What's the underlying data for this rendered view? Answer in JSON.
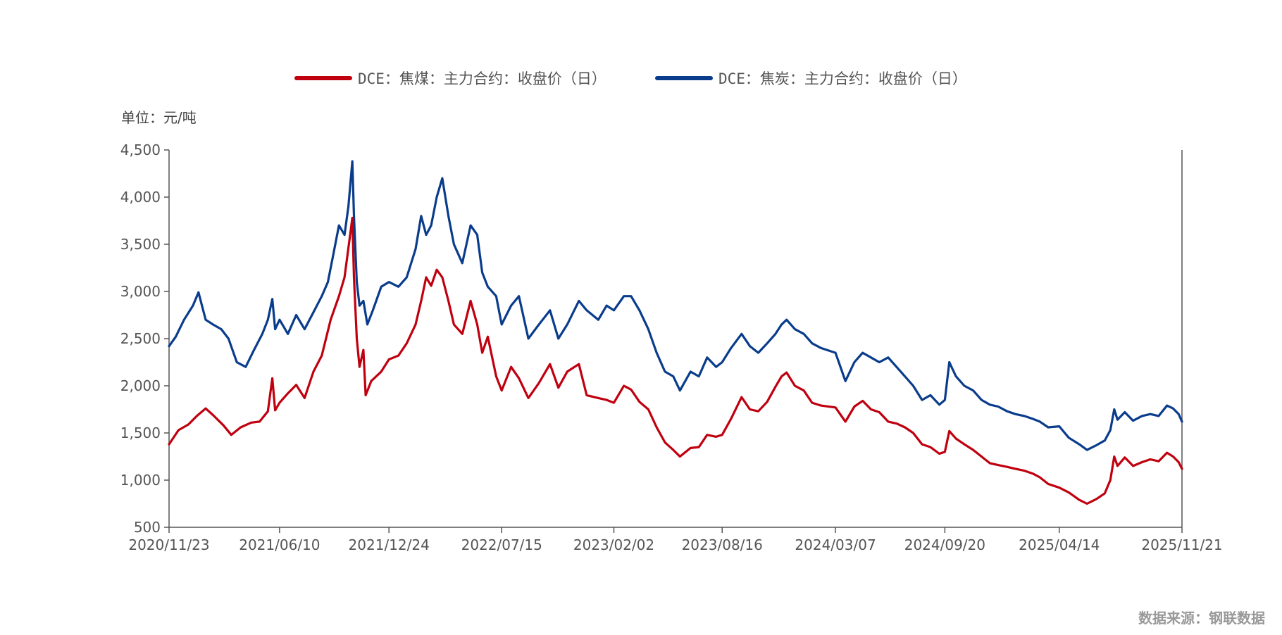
{
  "legend": {
    "coking_coal": "DCE：焦煤：主力合约：收盘价（日）",
    "coke": "DCE：焦炭：主力合约：收盘价（日）"
  },
  "unit_label": "单位：元/吨",
  "source": "数据来源：钢联数据",
  "colors": {
    "coking_coal": "#c0000f",
    "coke": "#0a3c8c",
    "axis": "#555555"
  },
  "chart_data": {
    "type": "line",
    "title": "",
    "xlabel": "",
    "ylabel": "单位：元/吨",
    "x_range": [
      "2020-11-23",
      "2025-11-21"
    ],
    "ylim": [
      500,
      4500
    ],
    "y_ticks": [
      500,
      1000,
      1500,
      2000,
      2500,
      3000,
      3500,
      4000,
      4500
    ],
    "y_tick_labels": [
      "500",
      "1,000",
      "1,500",
      "2,000",
      "2,500",
      "3,000",
      "3,500",
      "4,000",
      "4,500"
    ],
    "x_ticks": [
      "2020-11-23",
      "2021-06-10",
      "2021-12-24",
      "2022-07-15",
      "2023-02-02",
      "2023-08-16",
      "2024-03-07",
      "2024-09-20",
      "2025-04-14",
      "2025-11-21"
    ],
    "x_tick_labels": [
      "2020/11/23",
      "2021/06/10",
      "2021/12/24",
      "2022/07/15",
      "2023/02/02",
      "2023/08/16",
      "2024/03/07",
      "2024/09/20",
      "2025/04/14",
      "2025/11/21"
    ],
    "grid": false,
    "legend_position": "top-center",
    "series": [
      {
        "name": "DCE：焦煤：主力合约：收盘价（日）",
        "color": "#c0000f",
        "points": [
          [
            "2020-11-23",
            1380
          ],
          [
            "2020-12-10",
            1530
          ],
          [
            "2020-12-28",
            1590
          ],
          [
            "2021-01-12",
            1680
          ],
          [
            "2021-01-28",
            1760
          ],
          [
            "2021-02-10",
            1690
          ],
          [
            "2021-03-01",
            1580
          ],
          [
            "2021-03-15",
            1480
          ],
          [
            "2021-04-01",
            1560
          ],
          [
            "2021-04-20",
            1610
          ],
          [
            "2021-05-05",
            1620
          ],
          [
            "2021-05-20",
            1730
          ],
          [
            "2021-05-28",
            2080
          ],
          [
            "2021-06-02",
            1740
          ],
          [
            "2021-06-10",
            1820
          ],
          [
            "2021-06-25",
            1920
          ],
          [
            "2021-07-10",
            2010
          ],
          [
            "2021-07-25",
            1870
          ],
          [
            "2021-08-10",
            2150
          ],
          [
            "2021-08-25",
            2320
          ],
          [
            "2021-09-10",
            2700
          ],
          [
            "2021-09-25",
            2950
          ],
          [
            "2021-10-05",
            3150
          ],
          [
            "2021-10-12",
            3460
          ],
          [
            "2021-10-19",
            3780
          ],
          [
            "2021-10-22",
            3150
          ],
          [
            "2021-10-27",
            2500
          ],
          [
            "2021-11-01",
            2200
          ],
          [
            "2021-11-08",
            2380
          ],
          [
            "2021-11-12",
            1900
          ],
          [
            "2021-11-22",
            2050
          ],
          [
            "2021-12-10",
            2150
          ],
          [
            "2021-12-24",
            2280
          ],
          [
            "2022-01-10",
            2320
          ],
          [
            "2022-01-25",
            2450
          ],
          [
            "2022-02-10",
            2650
          ],
          [
            "2022-02-20",
            2900
          ],
          [
            "2022-03-01",
            3150
          ],
          [
            "2022-03-10",
            3060
          ],
          [
            "2022-03-20",
            3230
          ],
          [
            "2022-03-30",
            3150
          ],
          [
            "2022-04-10",
            2900
          ],
          [
            "2022-04-20",
            2650
          ],
          [
            "2022-05-05",
            2550
          ],
          [
            "2022-05-20",
            2900
          ],
          [
            "2022-06-01",
            2650
          ],
          [
            "2022-06-10",
            2350
          ],
          [
            "2022-06-20",
            2520
          ],
          [
            "2022-07-05",
            2100
          ],
          [
            "2022-07-15",
            1950
          ],
          [
            "2022-08-01",
            2200
          ],
          [
            "2022-08-15",
            2080
          ],
          [
            "2022-09-01",
            1870
          ],
          [
            "2022-09-20",
            2030
          ],
          [
            "2022-10-10",
            2230
          ],
          [
            "2022-10-25",
            1980
          ],
          [
            "2022-11-10",
            2150
          ],
          [
            "2022-12-01",
            2230
          ],
          [
            "2022-12-15",
            1900
          ],
          [
            "2023-01-05",
            1870
          ],
          [
            "2023-01-20",
            1850
          ],
          [
            "2023-02-02",
            1820
          ],
          [
            "2023-02-20",
            2000
          ],
          [
            "2023-03-05",
            1960
          ],
          [
            "2023-03-20",
            1830
          ],
          [
            "2023-04-05",
            1750
          ],
          [
            "2023-04-20",
            1560
          ],
          [
            "2023-05-05",
            1400
          ],
          [
            "2023-05-20",
            1320
          ],
          [
            "2023-06-01",
            1250
          ],
          [
            "2023-06-20",
            1340
          ],
          [
            "2023-07-05",
            1350
          ],
          [
            "2023-07-20",
            1480
          ],
          [
            "2023-08-05",
            1460
          ],
          [
            "2023-08-16",
            1480
          ],
          [
            "2023-09-01",
            1650
          ],
          [
            "2023-09-20",
            1880
          ],
          [
            "2023-10-05",
            1750
          ],
          [
            "2023-10-20",
            1730
          ],
          [
            "2023-11-05",
            1830
          ],
          [
            "2023-11-20",
            1990
          ],
          [
            "2023-12-01",
            2100
          ],
          [
            "2023-12-10",
            2140
          ],
          [
            "2023-12-25",
            2000
          ],
          [
            "2024-01-10",
            1950
          ],
          [
            "2024-01-25",
            1820
          ],
          [
            "2024-02-10",
            1790
          ],
          [
            "2024-03-07",
            1770
          ],
          [
            "2024-03-25",
            1620
          ],
          [
            "2024-04-10",
            1780
          ],
          [
            "2024-04-25",
            1840
          ],
          [
            "2024-05-10",
            1750
          ],
          [
            "2024-05-25",
            1720
          ],
          [
            "2024-06-10",
            1620
          ],
          [
            "2024-06-25",
            1600
          ],
          [
            "2024-07-10",
            1560
          ],
          [
            "2024-07-25",
            1500
          ],
          [
            "2024-08-10",
            1380
          ],
          [
            "2024-08-25",
            1350
          ],
          [
            "2024-09-10",
            1280
          ],
          [
            "2024-09-20",
            1300
          ],
          [
            "2024-09-28",
            1520
          ],
          [
            "2024-10-10",
            1440
          ],
          [
            "2024-10-25",
            1380
          ],
          [
            "2024-11-10",
            1320
          ],
          [
            "2024-11-25",
            1250
          ],
          [
            "2024-12-10",
            1180
          ],
          [
            "2024-12-25",
            1160
          ],
          [
            "2025-01-10",
            1140
          ],
          [
            "2025-01-25",
            1120
          ],
          [
            "2025-02-10",
            1100
          ],
          [
            "2025-02-25",
            1070
          ],
          [
            "2025-03-10",
            1030
          ],
          [
            "2025-03-25",
            960
          ],
          [
            "2025-04-14",
            920
          ],
          [
            "2025-05-01",
            870
          ],
          [
            "2025-05-20",
            790
          ],
          [
            "2025-06-03",
            750
          ],
          [
            "2025-06-20",
            800
          ],
          [
            "2025-07-05",
            860
          ],
          [
            "2025-07-15",
            1000
          ],
          [
            "2025-07-22",
            1250
          ],
          [
            "2025-07-28",
            1150
          ],
          [
            "2025-08-10",
            1240
          ],
          [
            "2025-08-25",
            1150
          ],
          [
            "2025-09-10",
            1190
          ],
          [
            "2025-09-25",
            1220
          ],
          [
            "2025-10-10",
            1200
          ],
          [
            "2025-10-25",
            1290
          ],
          [
            "2025-11-05",
            1250
          ],
          [
            "2025-11-15",
            1190
          ],
          [
            "2025-11-21",
            1120
          ]
        ]
      },
      {
        "name": "DCE：焦炭：主力合约：收盘价（日）",
        "color": "#0a3c8c",
        "points": [
          [
            "2020-11-23",
            2420
          ],
          [
            "2020-12-05",
            2520
          ],
          [
            "2020-12-20",
            2700
          ],
          [
            "2021-01-05",
            2850
          ],
          [
            "2021-01-15",
            2990
          ],
          [
            "2021-01-28",
            2700
          ],
          [
            "2021-02-10",
            2650
          ],
          [
            "2021-02-25",
            2600
          ],
          [
            "2021-03-10",
            2500
          ],
          [
            "2021-03-25",
            2250
          ],
          [
            "2021-04-10",
            2200
          ],
          [
            "2021-04-25",
            2380
          ],
          [
            "2021-05-10",
            2550
          ],
          [
            "2021-05-20",
            2700
          ],
          [
            "2021-05-28",
            2920
          ],
          [
            "2021-06-02",
            2600
          ],
          [
            "2021-06-10",
            2700
          ],
          [
            "2021-06-25",
            2550
          ],
          [
            "2021-07-10",
            2750
          ],
          [
            "2021-07-25",
            2600
          ],
          [
            "2021-08-10",
            2780
          ],
          [
            "2021-08-25",
            2950
          ],
          [
            "2021-09-05",
            3100
          ],
          [
            "2021-09-15",
            3400
          ],
          [
            "2021-09-25",
            3700
          ],
          [
            "2021-10-05",
            3600
          ],
          [
            "2021-10-12",
            3900
          ],
          [
            "2021-10-19",
            4380
          ],
          [
            "2021-10-22",
            3800
          ],
          [
            "2021-10-27",
            3100
          ],
          [
            "2021-11-01",
            2850
          ],
          [
            "2021-11-08",
            2900
          ],
          [
            "2021-11-15",
            2650
          ],
          [
            "2021-11-25",
            2800
          ],
          [
            "2021-12-10",
            3050
          ],
          [
            "2021-12-24",
            3100
          ],
          [
            "2022-01-10",
            3050
          ],
          [
            "2022-01-25",
            3150
          ],
          [
            "2022-02-10",
            3450
          ],
          [
            "2022-02-20",
            3800
          ],
          [
            "2022-03-01",
            3600
          ],
          [
            "2022-03-10",
            3700
          ],
          [
            "2022-03-20",
            4000
          ],
          [
            "2022-03-30",
            4200
          ],
          [
            "2022-04-10",
            3800
          ],
          [
            "2022-04-20",
            3500
          ],
          [
            "2022-05-05",
            3300
          ],
          [
            "2022-05-20",
            3700
          ],
          [
            "2022-06-01",
            3600
          ],
          [
            "2022-06-10",
            3200
          ],
          [
            "2022-06-20",
            3050
          ],
          [
            "2022-07-05",
            2950
          ],
          [
            "2022-07-15",
            2650
          ],
          [
            "2022-08-01",
            2850
          ],
          [
            "2022-08-15",
            2950
          ],
          [
            "2022-09-01",
            2500
          ],
          [
            "2022-09-20",
            2650
          ],
          [
            "2022-10-10",
            2800
          ],
          [
            "2022-10-25",
            2500
          ],
          [
            "2022-11-10",
            2650
          ],
          [
            "2022-12-01",
            2900
          ],
          [
            "2022-12-15",
            2800
          ],
          [
            "2023-01-05",
            2700
          ],
          [
            "2023-01-20",
            2850
          ],
          [
            "2023-02-02",
            2800
          ],
          [
            "2023-02-20",
            2950
          ],
          [
            "2023-03-05",
            2950
          ],
          [
            "2023-03-20",
            2800
          ],
          [
            "2023-04-05",
            2600
          ],
          [
            "2023-04-20",
            2350
          ],
          [
            "2023-05-05",
            2150
          ],
          [
            "2023-05-20",
            2100
          ],
          [
            "2023-06-01",
            1950
          ],
          [
            "2023-06-20",
            2150
          ],
          [
            "2023-07-05",
            2100
          ],
          [
            "2023-07-20",
            2300
          ],
          [
            "2023-08-05",
            2200
          ],
          [
            "2023-08-16",
            2250
          ],
          [
            "2023-09-01",
            2400
          ],
          [
            "2023-09-20",
            2550
          ],
          [
            "2023-10-05",
            2420
          ],
          [
            "2023-10-20",
            2350
          ],
          [
            "2023-11-05",
            2450
          ],
          [
            "2023-11-20",
            2550
          ],
          [
            "2023-12-01",
            2650
          ],
          [
            "2023-12-10",
            2700
          ],
          [
            "2023-12-25",
            2600
          ],
          [
            "2024-01-10",
            2550
          ],
          [
            "2024-01-25",
            2450
          ],
          [
            "2024-02-10",
            2400
          ],
          [
            "2024-03-07",
            2350
          ],
          [
            "2024-03-25",
            2050
          ],
          [
            "2024-04-10",
            2250
          ],
          [
            "2024-04-25",
            2350
          ],
          [
            "2024-05-10",
            2300
          ],
          [
            "2024-05-25",
            2250
          ],
          [
            "2024-06-10",
            2300
          ],
          [
            "2024-06-25",
            2200
          ],
          [
            "2024-07-10",
            2100
          ],
          [
            "2024-07-25",
            2000
          ],
          [
            "2024-08-10",
            1850
          ],
          [
            "2024-08-25",
            1900
          ],
          [
            "2024-09-10",
            1800
          ],
          [
            "2024-09-20",
            1850
          ],
          [
            "2024-09-28",
            2250
          ],
          [
            "2024-10-10",
            2100
          ],
          [
            "2024-10-25",
            2000
          ],
          [
            "2024-11-10",
            1950
          ],
          [
            "2024-11-25",
            1850
          ],
          [
            "2024-12-10",
            1800
          ],
          [
            "2024-12-25",
            1780
          ],
          [
            "2025-01-10",
            1730
          ],
          [
            "2025-01-25",
            1700
          ],
          [
            "2025-02-10",
            1680
          ],
          [
            "2025-02-25",
            1650
          ],
          [
            "2025-03-10",
            1620
          ],
          [
            "2025-03-25",
            1560
          ],
          [
            "2025-04-14",
            1570
          ],
          [
            "2025-05-01",
            1450
          ],
          [
            "2025-05-20",
            1380
          ],
          [
            "2025-06-03",
            1320
          ],
          [
            "2025-06-20",
            1370
          ],
          [
            "2025-07-05",
            1420
          ],
          [
            "2025-07-15",
            1530
          ],
          [
            "2025-07-22",
            1750
          ],
          [
            "2025-07-28",
            1640
          ],
          [
            "2025-08-10",
            1720
          ],
          [
            "2025-08-25",
            1630
          ],
          [
            "2025-09-10",
            1680
          ],
          [
            "2025-09-25",
            1700
          ],
          [
            "2025-10-10",
            1680
          ],
          [
            "2025-10-25",
            1790
          ],
          [
            "2025-11-05",
            1760
          ],
          [
            "2025-11-15",
            1700
          ],
          [
            "2025-11-21",
            1620
          ]
        ]
      }
    ]
  }
}
